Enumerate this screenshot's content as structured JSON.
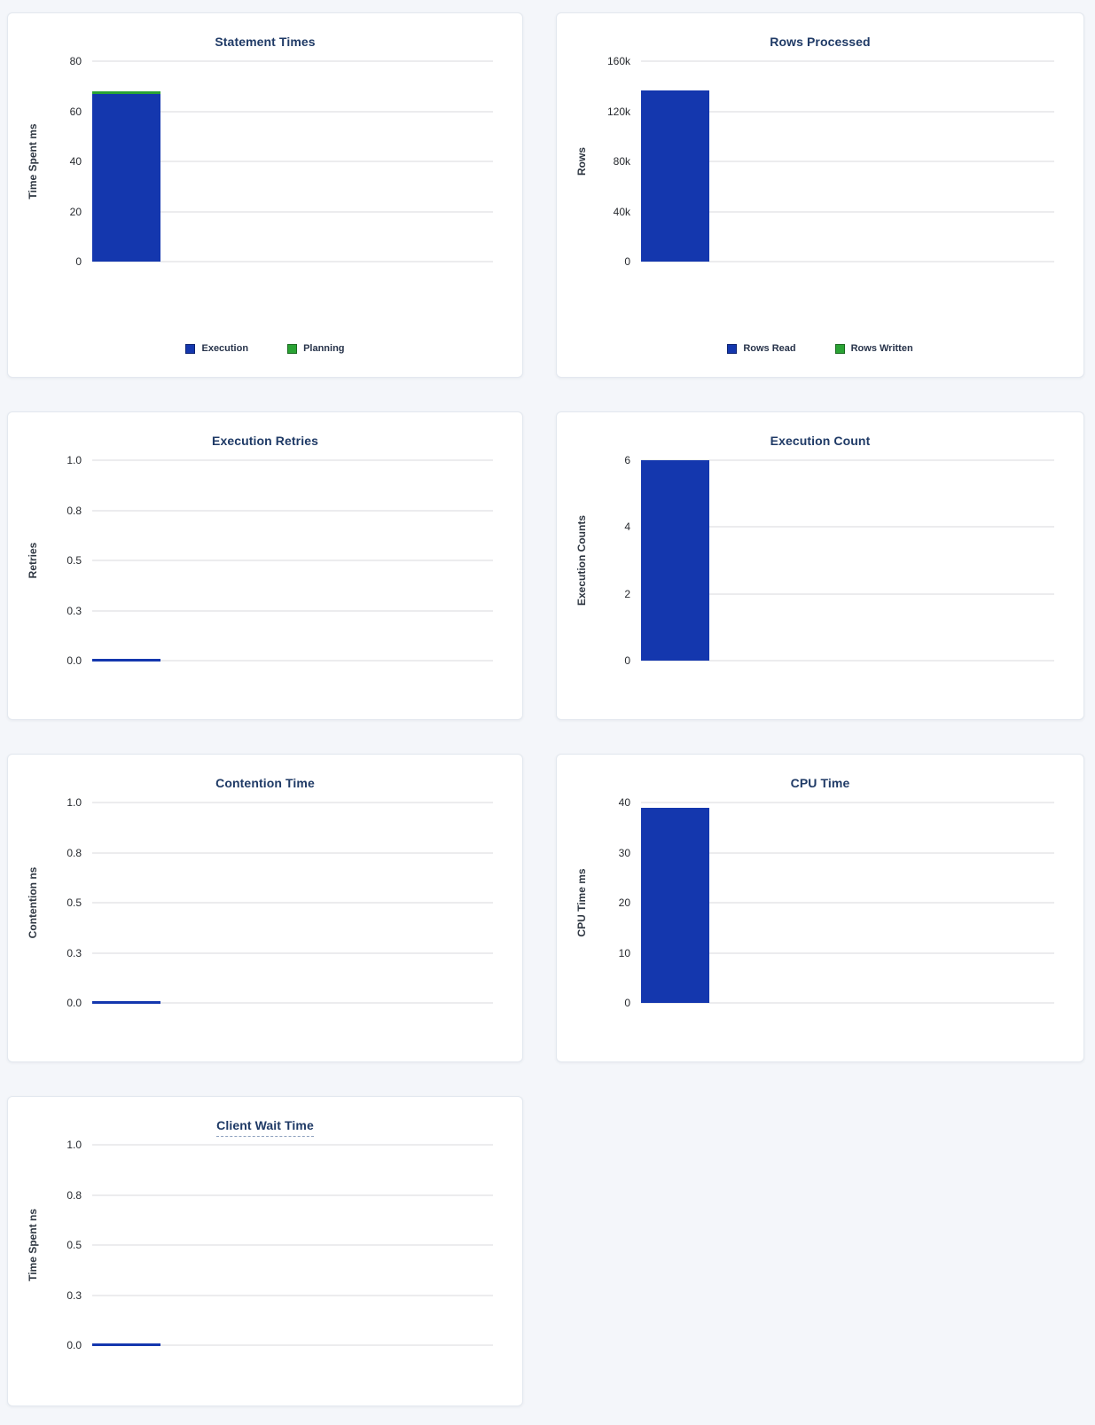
{
  "page": {
    "background": "#f4f6fa"
  },
  "colors": {
    "bar_blue": "#1437ae",
    "bar_green": "#2aa334",
    "title_navy": "#1f3a66",
    "gridline": "#ececee"
  },
  "chart_data": [
    {
      "type": "bar",
      "title": "Statement Times",
      "xlabel": "",
      "ylabel": "Time Spent ms",
      "ylim": [
        0,
        80
      ],
      "grid": true,
      "legend_position": "bottom",
      "categories": [
        ""
      ],
      "yticks": {
        "labels": [
          "0",
          "20",
          "40",
          "60",
          "80"
        ],
        "values": [
          0,
          20,
          40,
          60,
          80
        ]
      },
      "series": [
        {
          "name": "Execution",
          "color": "#1437ae",
          "values": [
            67
          ]
        },
        {
          "name": "Planning",
          "color": "#2aa334",
          "values": [
            1
          ]
        }
      ]
    },
    {
      "type": "bar",
      "title": "Rows Processed",
      "xlabel": "",
      "ylabel": "Rows",
      "ylim": [
        0,
        160000
      ],
      "grid": true,
      "legend_position": "bottom",
      "categories": [
        ""
      ],
      "yticks": {
        "labels": [
          "0",
          "40k",
          "80k",
          "120k",
          "160k"
        ],
        "values": [
          0,
          40000,
          80000,
          120000,
          160000
        ]
      },
      "series": [
        {
          "name": "Rows Read",
          "color": "#1437ae",
          "values": [
            137000
          ]
        },
        {
          "name": "Rows Written",
          "color": "#2aa334",
          "values": [
            0
          ]
        }
      ]
    },
    {
      "type": "bar",
      "title": "Execution Retries",
      "xlabel": "",
      "ylabel": "Retries",
      "ylim": [
        0,
        1
      ],
      "grid": true,
      "legend_position": "none",
      "categories": [
        ""
      ],
      "yticks": {
        "labels": [
          "0.0",
          "0.3",
          "0.5",
          "0.8",
          "1.0"
        ],
        "values": [
          0,
          0.25,
          0.5,
          0.75,
          1
        ]
      },
      "series": [
        {
          "name": "Retries",
          "color": "#1437ae",
          "values": [
            0
          ]
        }
      ]
    },
    {
      "type": "bar",
      "title": "Execution Count",
      "xlabel": "",
      "ylabel": "Execution Counts",
      "ylim": [
        0,
        6
      ],
      "grid": true,
      "legend_position": "none",
      "categories": [
        ""
      ],
      "yticks": {
        "labels": [
          "0",
          "2",
          "4",
          "6"
        ],
        "values": [
          0,
          2,
          4,
          6
        ]
      },
      "series": [
        {
          "name": "Execution Counts",
          "color": "#1437ae",
          "values": [
            6
          ]
        }
      ]
    },
    {
      "type": "bar",
      "title": "Contention Time",
      "xlabel": "",
      "ylabel": "Contention ns",
      "ylim": [
        0,
        1
      ],
      "grid": true,
      "legend_position": "none",
      "categories": [
        ""
      ],
      "yticks": {
        "labels": [
          "0.0",
          "0.3",
          "0.5",
          "0.8",
          "1.0"
        ],
        "values": [
          0,
          0.25,
          0.5,
          0.75,
          1
        ]
      },
      "series": [
        {
          "name": "Contention ns",
          "color": "#1437ae",
          "values": [
            0
          ]
        }
      ]
    },
    {
      "type": "bar",
      "title": "CPU Time",
      "xlabel": "",
      "ylabel": "CPU Time ms",
      "ylim": [
        0,
        40
      ],
      "grid": true,
      "legend_position": "none",
      "categories": [
        ""
      ],
      "yticks": {
        "labels": [
          "0",
          "10",
          "20",
          "30",
          "40"
        ],
        "values": [
          0,
          10,
          20,
          30,
          40
        ]
      },
      "series": [
        {
          "name": "CPU Time ms",
          "color": "#1437ae",
          "values": [
            39
          ]
        }
      ]
    },
    {
      "type": "bar",
      "title": "Client Wait Time",
      "xlabel": "",
      "ylabel": "Time Spent ns",
      "ylim": [
        0,
        1
      ],
      "grid": true,
      "legend_position": "none",
      "categories": [
        ""
      ],
      "yticks": {
        "labels": [
          "0.0",
          "0.3",
          "0.5",
          "0.8",
          "1.0"
        ],
        "values": [
          0,
          0.25,
          0.5,
          0.75,
          1
        ]
      },
      "series": [
        {
          "name": "Time Spent ns",
          "color": "#1437ae",
          "values": [
            0
          ]
        }
      ]
    }
  ]
}
